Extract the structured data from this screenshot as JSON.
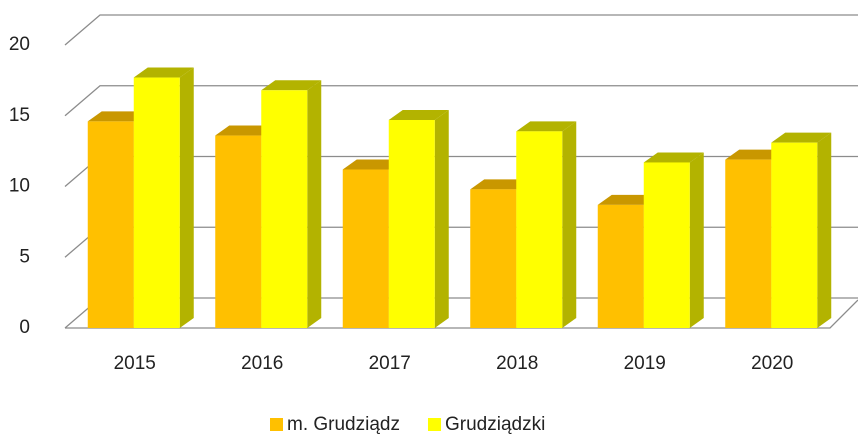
{
  "chart_data": {
    "type": "bar3d",
    "categories": [
      "2015",
      "2016",
      "2017",
      "2018",
      "2019",
      "2020"
    ],
    "series": [
      {
        "name": "m. Grudziądz",
        "color": "#FFC000",
        "side": "#C99700",
        "values": [
          14.6,
          13.6,
          11.2,
          9.8,
          8.7,
          11.9
        ]
      },
      {
        "name": "Grudziądzki",
        "color": "#FFFF00",
        "side": "#B3B300",
        "values": [
          17.7,
          16.8,
          14.7,
          13.9,
          11.7,
          13.1
        ]
      }
    ],
    "ylim": [
      0,
      20
    ],
    "yticks": [
      0,
      5,
      10,
      15,
      20
    ],
    "grid": true,
    "legend": "bottom"
  }
}
